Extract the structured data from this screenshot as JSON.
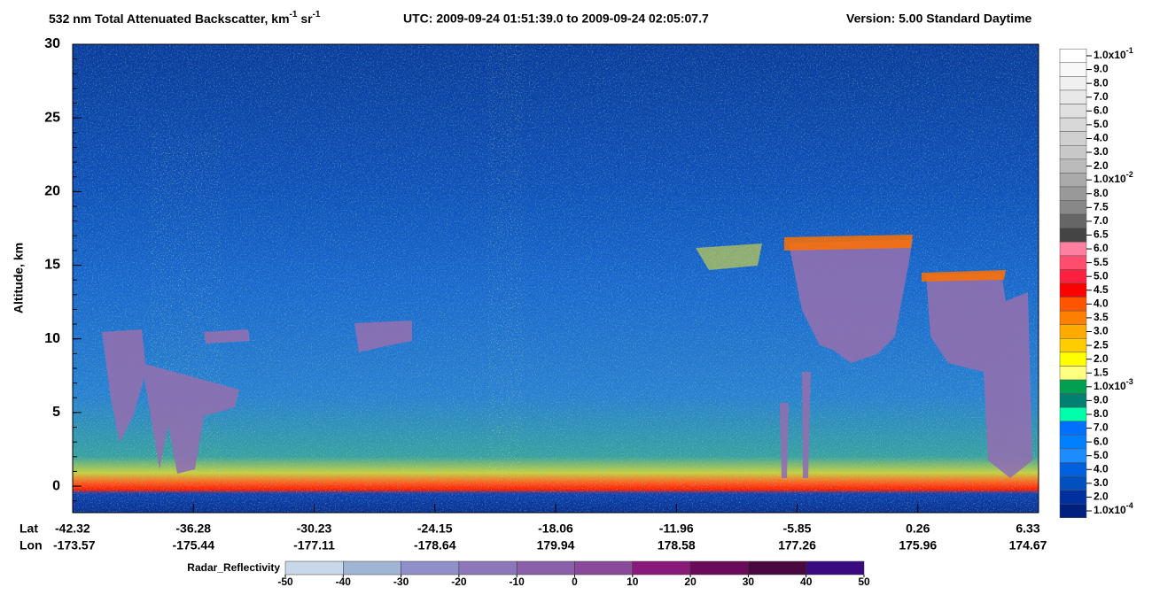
{
  "title": {
    "main": "532 nm Total Attenuated Backscatter, km",
    "exp1": "-1",
    "unit2": " sr",
    "exp2": "-1",
    "utc": "UTC:  2009-09-24 01:51:39.0  to  2009-09-24 02:05:07.7",
    "version": "Version: 5.00  Standard  Daytime"
  },
  "y_axis": {
    "label": "Altitude, km",
    "lim": [
      -1.8,
      30
    ],
    "ticks": [
      0,
      5,
      10,
      15,
      20,
      25,
      30
    ]
  },
  "x_axis": {
    "lat_label": "Lat",
    "lon_label": "Lon",
    "lat": [
      "-42.32",
      "-36.28",
      "-30.23",
      "-24.15",
      "-18.06",
      "-11.96",
      "-5.85",
      "0.26",
      "6.33"
    ],
    "lon": [
      "-173.57",
      "-175.44",
      "-177.11",
      "-178.64",
      "179.94",
      "178.58",
      "177.26",
      "175.96",
      "174.67"
    ]
  },
  "colorbar": {
    "labels": [
      {
        "text": "1.0x10",
        "exp": "-1"
      },
      "9.0",
      "8.0",
      "7.0",
      "6.0",
      "5.0",
      "4.0",
      "3.0",
      "2.0",
      {
        "text": "1.0x10",
        "exp": "-2"
      },
      "8.0",
      "7.5",
      "7.0",
      "6.5",
      "6.0",
      "5.5",
      "5.0",
      "4.5",
      "4.0",
      "3.5",
      "3.0",
      "2.5",
      "2.0",
      "1.5",
      {
        "text": "1.0x10",
        "exp": "-3"
      },
      "9.0",
      "8.0",
      "7.0",
      "6.0",
      "5.0",
      "4.0",
      "3.0",
      "2.0",
      {
        "text": "1.0x10",
        "exp": "-4"
      }
    ],
    "colors": [
      "#ffffff",
      "#f8f8f8",
      "#f0f0f0",
      "#e8e8e8",
      "#e0e0e0",
      "#d8d8d8",
      "#d0d0d0",
      "#c8c8c8",
      "#bbbbbb",
      "#aaaaaa",
      "#999999",
      "#888888",
      "#666666",
      "#444444",
      "#ff7fa0",
      "#ff4d6e",
      "#ff2040",
      "#ff0000",
      "#ff5500",
      "#ff7f00",
      "#ffaa00",
      "#ffcc00",
      "#ffff00",
      "#ffff80",
      "#00a050",
      "#008070",
      "#00ffaa",
      "#0070ff",
      "#0080ff",
      "#1c8cff",
      "#0060e0",
      "#0050c0",
      "#0030a0",
      "#002080"
    ]
  },
  "radar_colorbar": {
    "label": "Radar_Reflectivity",
    "ticks": [
      -50,
      -40,
      -30,
      -20,
      -10,
      0,
      10,
      20,
      30,
      40,
      50
    ],
    "colors": [
      "#c8d8e8",
      "#a0b4d4",
      "#9090c8",
      "#8c78b8",
      "#8a60a8",
      "#8a4a9a",
      "#8a1a7a",
      "#6a0a5a",
      "#4a0840",
      "#3a0a80"
    ]
  }
}
